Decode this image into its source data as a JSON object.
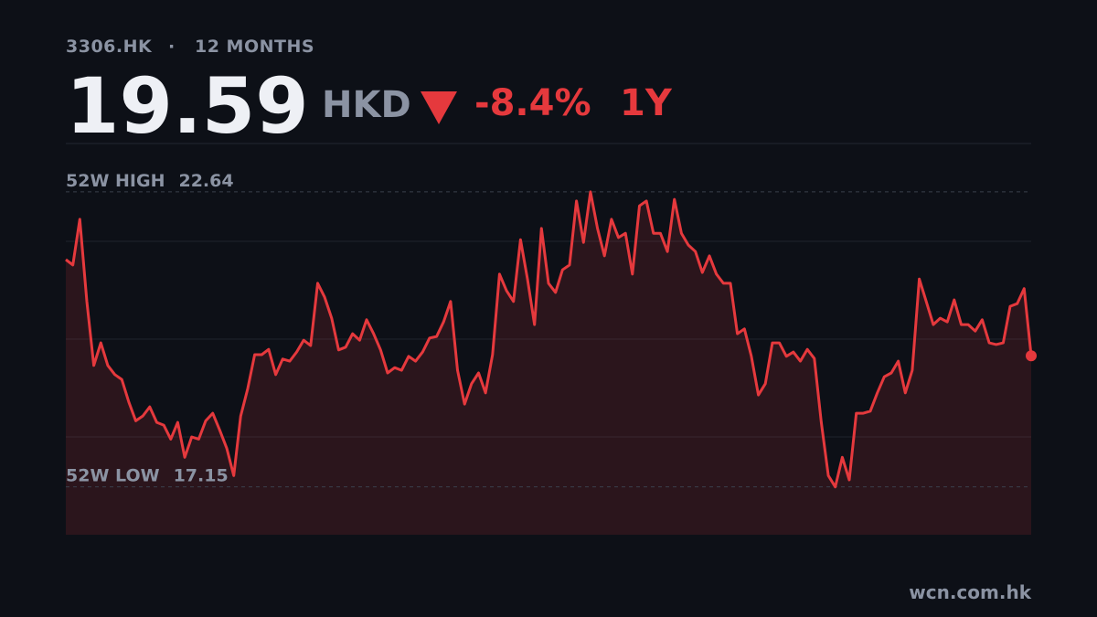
{
  "header": {
    "ticker": "3306.HK",
    "period": "12 MONTHS",
    "price": 19.59,
    "currency": "HKD",
    "change": "-8.4%",
    "range": "1Y"
  },
  "chart_data": {
    "type": "line",
    "color": "#e5393d",
    "ylim": [
      16.26,
      23.54
    ],
    "grid": true,
    "high": {
      "label": "52W HIGH",
      "value": 22.64
    },
    "low": {
      "label": "52W LOW",
      "value": 17.15
    },
    "values": [
      21.38,
      21.28,
      22.13,
      20.6,
      19.41,
      19.83,
      19.41,
      19.24,
      19.15,
      18.73,
      18.38,
      18.47,
      18.64,
      18.35,
      18.3,
      18.04,
      18.35,
      17.7,
      18.08,
      18.04,
      18.38,
      18.52,
      18.21,
      17.87,
      17.36,
      18.47,
      18.98,
      19.61,
      19.61,
      19.71,
      19.24,
      19.53,
      19.49,
      19.66,
      19.88,
      19.78,
      20.94,
      20.68,
      20.29,
      19.7,
      19.75,
      20.0,
      19.88,
      20.26,
      20.0,
      19.7,
      19.27,
      19.37,
      19.32,
      19.58,
      19.49,
      19.66,
      19.92,
      19.95,
      20.22,
      20.6,
      19.32,
      18.69,
      19.07,
      19.27,
      18.9,
      19.61,
      21.11,
      20.8,
      20.6,
      21.75,
      21.02,
      20.17,
      21.96,
      20.94,
      20.77,
      21.19,
      21.28,
      22.47,
      21.7,
      22.64,
      21.96,
      21.45,
      22.13,
      21.79,
      21.87,
      21.11,
      22.38,
      22.47,
      21.87,
      21.87,
      21.53,
      22.5,
      21.87,
      21.65,
      21.53,
      21.14,
      21.45,
      21.11,
      20.94,
      20.94,
      20.0,
      20.09,
      19.58,
      18.86,
      19.07,
      19.83,
      19.83,
      19.58,
      19.66,
      19.49,
      19.71,
      19.54,
      18.35,
      17.36,
      17.15,
      17.7,
      17.28,
      18.52,
      18.52,
      18.56,
      18.9,
      19.2,
      19.27,
      19.49,
      18.9,
      19.32,
      21.02,
      20.6,
      20.17,
      20.29,
      20.22,
      20.63,
      20.17,
      20.17,
      20.05,
      20.26,
      19.83,
      19.8,
      19.83,
      20.51,
      20.56,
      20.84,
      19.59
    ]
  },
  "footer": "wcn.com.hk"
}
